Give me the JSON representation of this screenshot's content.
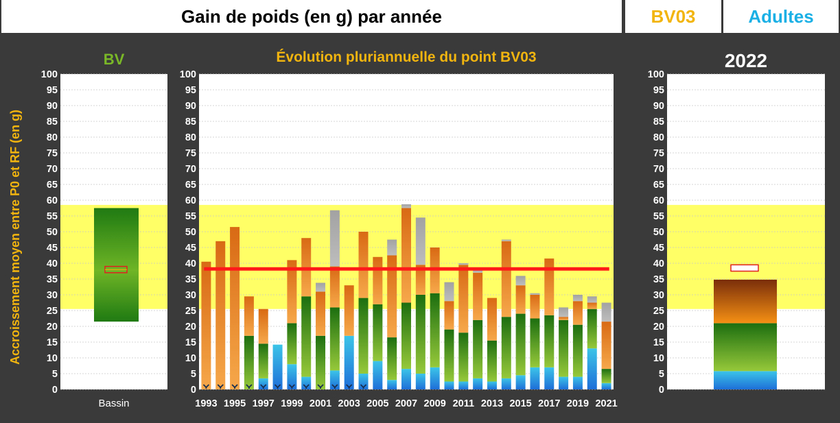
{
  "header": {
    "title": "Gain de poids (en g) par année",
    "station": "BV03",
    "stage": "Adultes",
    "colors": {
      "station": "#f2b50f",
      "stage": "#1ab0e6"
    }
  },
  "y_axis_label": "Accroissement  moyen entre P0 et RF (en g)",
  "chart_data": [
    {
      "type": "bar",
      "title": "BV",
      "categories": [
        "Bassin"
      ],
      "ylim": [
        0,
        100
      ],
      "yticks": [
        0,
        5,
        10,
        15,
        20,
        25,
        30,
        35,
        40,
        45,
        50,
        55,
        60,
        65,
        70,
        75,
        80,
        85,
        90,
        95,
        100
      ],
      "reference_band": [
        25.5,
        58.5
      ],
      "box_range": [
        21.5,
        57.5
      ],
      "marker_range": [
        37,
        39
      ],
      "legend": "none"
    },
    {
      "type": "bar",
      "title": "Évolution pluriannuelle du point BV03",
      "x": [
        "1993",
        "1994",
        "1995",
        "1996",
        "1997",
        "1998",
        "1999",
        "2000",
        "2001",
        "2002",
        "2003",
        "2004",
        "2005",
        "2006",
        "2007",
        "2008",
        "2009",
        "2010",
        "2011",
        "2012",
        "2013",
        "2014",
        "2015",
        "2016",
        "2017",
        "2018",
        "2019",
        "2020",
        "2021"
      ],
      "xtick_labels": [
        "1993",
        "1995",
        "1997",
        "1999",
        "2001",
        "2003",
        "2005",
        "2007",
        "2009",
        "2011",
        "2013",
        "2015",
        "2017",
        "2019",
        "2021"
      ],
      "ylim": [
        0,
        100
      ],
      "yticks": [
        0,
        5,
        10,
        15,
        20,
        25,
        30,
        35,
        40,
        45,
        50,
        55,
        60,
        65,
        70,
        75,
        80,
        85,
        90,
        95,
        100
      ],
      "reference_band": [
        25.5,
        58.5
      ],
      "mean_line": 38.2,
      "series": [
        {
          "color": "#29a7e0",
          "values": [
            0,
            0,
            0,
            0,
            3.5,
            14.2,
            8,
            4,
            0,
            6,
            17,
            5,
            9,
            3,
            6.5,
            5,
            7,
            2.5,
            2.5,
            3.5,
            2.5,
            3.5,
            4.5,
            7,
            7,
            4,
            4,
            13,
            2
          ]
        },
        {
          "color": "#5aa51e",
          "values": [
            0,
            0,
            0,
            17,
            11,
            0,
            13,
            25.5,
            17,
            20,
            0,
            24,
            18,
            13.5,
            21,
            25,
            23.5,
            16.5,
            15.5,
            18.5,
            13,
            19.5,
            19.5,
            15.5,
            16.5,
            18,
            16.5,
            12.5,
            4.5
          ]
        },
        {
          "color": "#f0902a",
          "values": [
            40.5,
            47,
            51.5,
            12.5,
            11,
            0,
            20,
            18.5,
            14,
            13,
            16,
            21,
            15,
            26,
            30,
            9.5,
            14.5,
            9,
            21.5,
            15,
            13.5,
            24,
            9,
            7.5,
            18,
            1,
            7.5,
            2,
            15
          ]
        },
        {
          "color": "#a6a6a6",
          "values": [
            0,
            0,
            0,
            0,
            0,
            0,
            0,
            0,
            2.8,
            17.8,
            0,
            0,
            0,
            5,
            1.2,
            15,
            0,
            6,
            0.5,
            1,
            0,
            0.5,
            3,
            0.5,
            0,
            3,
            2,
            2,
            6
          ]
        }
      ],
      "markers": [
        "1993",
        "1994",
        "1995",
        "1996",
        "1997",
        "1998",
        "1999",
        "2000",
        "2001",
        "2002",
        "2003",
        "2004"
      ],
      "legend": "none"
    },
    {
      "type": "bar",
      "title": "2022",
      "categories": [
        ""
      ],
      "ylim": [
        0,
        100
      ],
      "yticks": [
        0,
        5,
        10,
        15,
        20,
        25,
        30,
        35,
        40,
        45,
        50,
        55,
        60,
        65,
        70,
        75,
        80,
        85,
        90,
        95,
        100
      ],
      "reference_band": [
        25.5,
        58.5
      ],
      "series": [
        {
          "color": "#29a7e0",
          "values": [
            5.8
          ]
        },
        {
          "color": "#5aa51e",
          "values": [
            15.2
          ]
        },
        {
          "color": "#f0902a",
          "values": [
            13.8
          ]
        }
      ],
      "marker_range": [
        37.5,
        39.5
      ],
      "legend": "none"
    }
  ]
}
